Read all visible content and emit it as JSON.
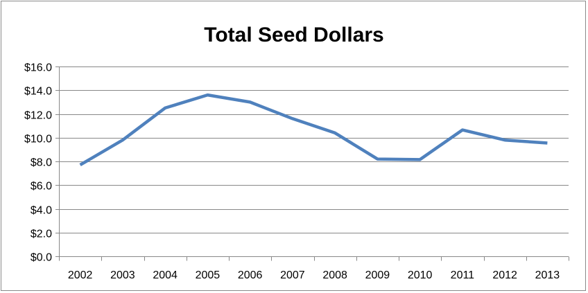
{
  "chart_data": {
    "type": "line",
    "title": "Total Seed Dollars",
    "xlabel": "",
    "ylabel": "",
    "categories": [
      "2002",
      "2003",
      "2004",
      "2005",
      "2006",
      "2007",
      "2008",
      "2009",
      "2010",
      "2011",
      "2012",
      "2013"
    ],
    "series": [
      {
        "values": [
          7.7,
          9.8,
          12.5,
          13.6,
          13.0,
          11.6,
          10.4,
          8.2,
          8.15,
          10.65,
          9.8,
          9.55
        ],
        "color": "#4F81BD"
      }
    ],
    "ylim": [
      0,
      16
    ],
    "yticks": [
      0,
      2,
      4,
      6,
      8,
      10,
      12,
      14,
      16
    ],
    "ytick_labels": [
      "$0.0",
      "$2.0",
      "$4.0",
      "$6.0",
      "$8.0",
      "$10.0",
      "$12.0",
      "$14.0",
      "$16.0"
    ],
    "grid": true,
    "legend": "none",
    "colors": {
      "line": "#4F81BD",
      "grid": "#878787",
      "border": "#898989"
    }
  }
}
